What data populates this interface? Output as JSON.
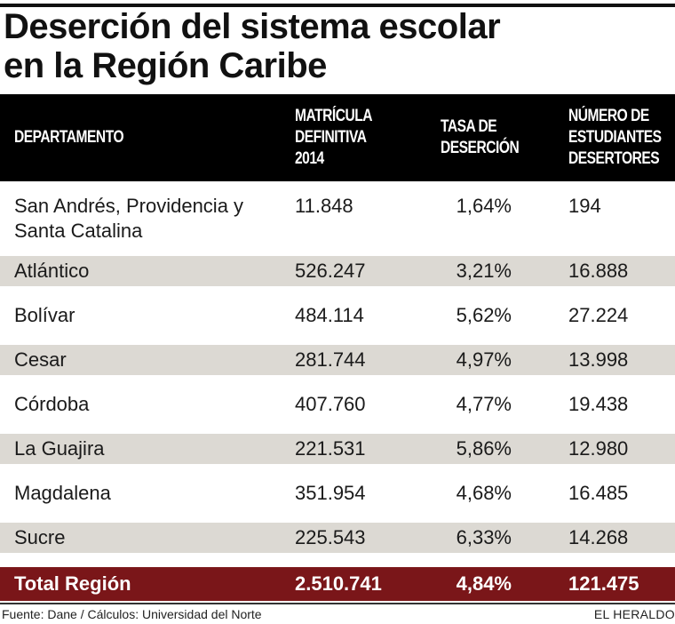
{
  "title": {
    "line1": "Deserción del sistema escolar",
    "line2": "en la Región Caribe"
  },
  "headers": {
    "departamento": "DEPARTAMENTO",
    "matricula": "MATRÍCULA\nDEFINITIVA\n2014",
    "tasa": "TASA DE\nDESERCIÓN",
    "numero": "NÚMERO DE\nESTUDIANTES\nDESERTORES"
  },
  "rows": [
    {
      "departamento": "San Andrés, Providencia y Santa Catalina",
      "matricula": "11.848",
      "tasa": "1,64%",
      "numero": "194"
    },
    {
      "departamento": "Atlántico",
      "matricula": "526.247",
      "tasa": "3,21%",
      "numero": "16.888"
    },
    {
      "departamento": "Bolívar",
      "matricula": "484.114",
      "tasa": "5,62%",
      "numero": "27.224"
    },
    {
      "departamento": "Cesar",
      "matricula": "281.744",
      "tasa": "4,97%",
      "numero": "13.998"
    },
    {
      "departamento": "Córdoba",
      "matricula": "407.760",
      "tasa": "4,77%",
      "numero": "19.438"
    },
    {
      "departamento": "La Guajira",
      "matricula": "221.531",
      "tasa": "5,86%",
      "numero": "12.980"
    },
    {
      "departamento": "Magdalena",
      "matricula": "351.954",
      "tasa": "4,68%",
      "numero": "16.485"
    },
    {
      "departamento": "Sucre",
      "matricula": "225.543",
      "tasa": "6,33%",
      "numero": "14.268"
    }
  ],
  "total": {
    "departamento": "Total Región",
    "matricula": "2.510.741",
    "tasa": "4,84%",
    "numero": "121.475"
  },
  "footer": {
    "source": "Fuente: Dane / Cálculos: Universidad del Norte",
    "brand": "EL HERALDO"
  }
}
